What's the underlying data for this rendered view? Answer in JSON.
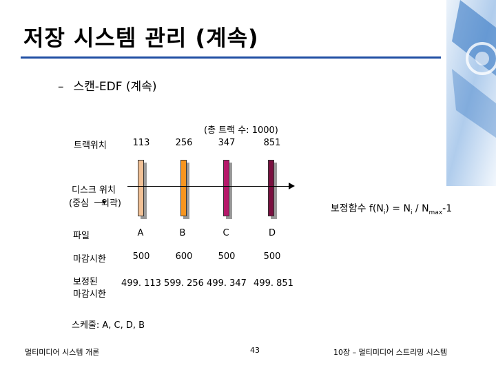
{
  "slide": {
    "title": "저장 시스템 관리 (계속)",
    "subtitle_dash": "–",
    "subtitle": "스캔-EDF (계속)"
  },
  "table": {
    "total_tracks": "(총 트랙 수: 1000)",
    "row_labels": {
      "track_position": "트랙위치",
      "disk_position_1": "디스크 위치",
      "disk_position_2a": "(중심",
      "disk_position_2b": "외곽)",
      "file": "파일",
      "deadline": "마감시한",
      "corrected_1": "보정된",
      "corrected_2": "마감시한"
    },
    "columns": [
      {
        "track": "113",
        "file": "A",
        "deadline": "500",
        "corrected": "499. 113",
        "color": "#f2c196"
      },
      {
        "track": "256",
        "file": "B",
        "deadline": "600",
        "corrected": "599. 256",
        "color": "#f7951f"
      },
      {
        "track": "347",
        "file": "C",
        "deadline": "500",
        "corrected": "499. 347",
        "color": "#b6186a"
      },
      {
        "track": "851",
        "file": "D",
        "deadline": "500",
        "corrected": "499. 851",
        "color": "#7a1040"
      }
    ],
    "correction_function": {
      "prefix": "보정함수 f(N",
      "sub_i": "i",
      "mid": ") = N",
      "sub_i2": "i",
      "slash": " / N",
      "sub_max": "max",
      "suffix": "-1"
    },
    "schedule": "스케줄: A, C, D, B"
  },
  "footer": {
    "left": "멀티미디어 시스템 개론",
    "page": "43",
    "right": "10장 – 멀티미디어 스트리밍 시스템"
  },
  "colors": {
    "title_rule": "#1f4ea3",
    "decoration": "#2a6fc0"
  }
}
